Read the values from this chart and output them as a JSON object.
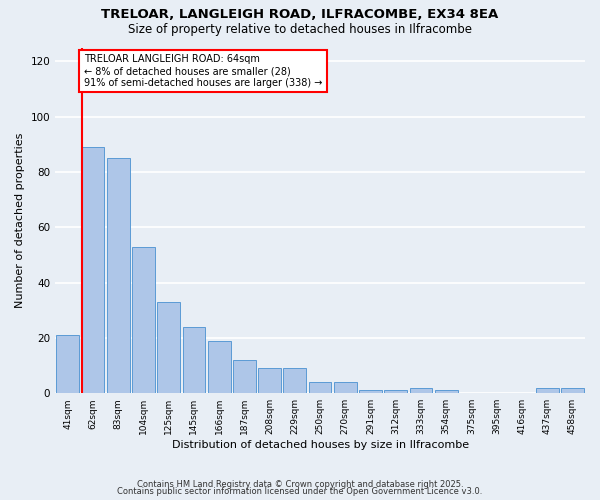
{
  "title1": "TRELOAR, LANGLEIGH ROAD, ILFRACOMBE, EX34 8EA",
  "title2": "Size of property relative to detached houses in Ilfracombe",
  "xlabel": "Distribution of detached houses by size in Ilfracombe",
  "ylabel": "Number of detached properties",
  "categories": [
    "41sqm",
    "62sqm",
    "83sqm",
    "104sqm",
    "125sqm",
    "145sqm",
    "166sqm",
    "187sqm",
    "208sqm",
    "229sqm",
    "250sqm",
    "270sqm",
    "291sqm",
    "312sqm",
    "333sqm",
    "354sqm",
    "375sqm",
    "395sqm",
    "416sqm",
    "437sqm",
    "458sqm"
  ],
  "values": [
    21,
    89,
    85,
    53,
    33,
    24,
    19,
    12,
    9,
    9,
    4,
    4,
    1,
    1,
    2,
    1,
    0,
    0,
    0,
    2,
    2
  ],
  "bar_color": "#aec6e8",
  "bar_edge_color": "#5b9bd5",
  "annotation_text_line1": "TRELOAR LANGLEIGH ROAD: 64sqm",
  "annotation_text_line2": "← 8% of detached houses are smaller (28)",
  "annotation_text_line3": "91% of semi-detached houses are larger (338) →",
  "annotation_box_color": "white",
  "annotation_box_edge_color": "red",
  "ref_line_color": "red",
  "ylim": [
    0,
    125
  ],
  "yticks": [
    0,
    20,
    40,
    60,
    80,
    100,
    120
  ],
  "background_color": "#e8eef5",
  "grid_color": "white",
  "footer1": "Contains HM Land Registry data © Crown copyright and database right 2025.",
  "footer2": "Contains public sector information licensed under the Open Government Licence v3.0."
}
